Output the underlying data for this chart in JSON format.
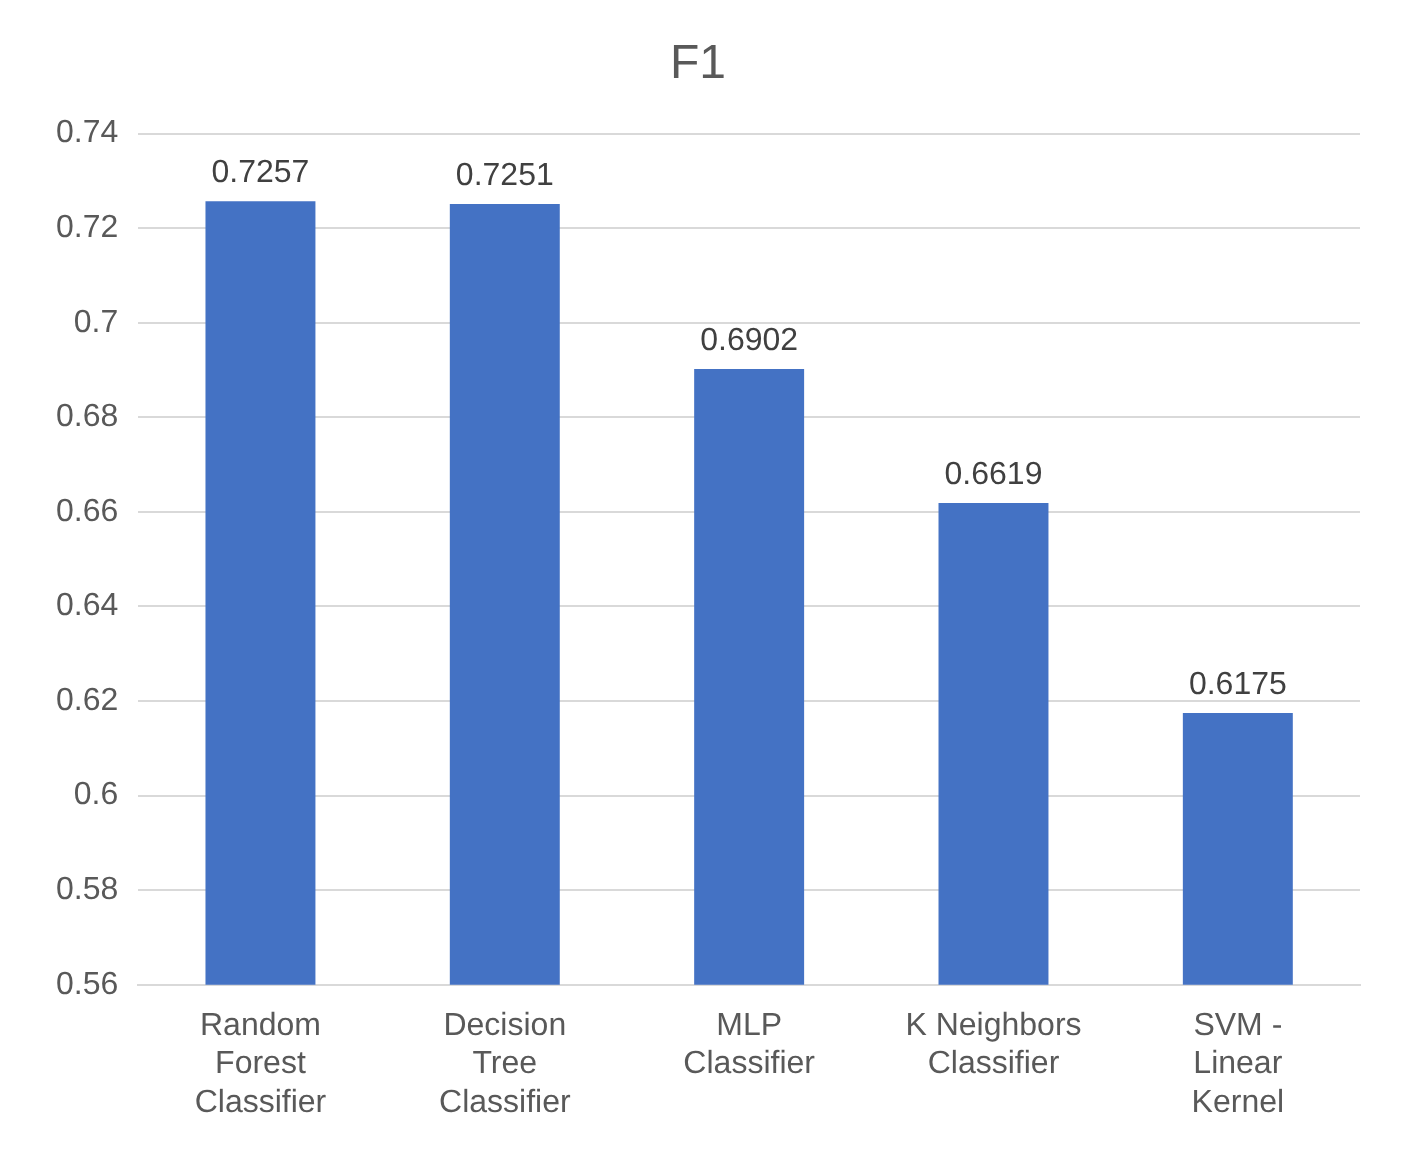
{
  "chart_data": {
    "type": "bar",
    "title": "F1",
    "categories": [
      "Random Forest Classifier",
      "Decision Tree Classifier",
      "MLP Classifier",
      "K Neighbors Classifier",
      "SVM - Linear Kernel"
    ],
    "values": [
      0.7257,
      0.7251,
      0.6902,
      0.6619,
      0.6175
    ],
    "color": "#4472c4",
    "ylim": [
      0.56,
      0.74
    ],
    "yticks": [
      0.56,
      0.58,
      0.6,
      0.62,
      0.64,
      0.66,
      0.68,
      0.7,
      0.72,
      0.74
    ],
    "grid": "y",
    "data_labels": true,
    "legend": false
  }
}
